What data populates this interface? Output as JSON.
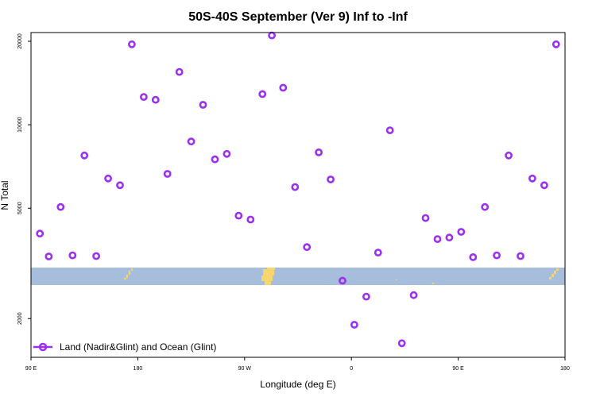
{
  "chart_data": {
    "type": "scatter",
    "title": "50S-40S September (Ver 9)   Inf to -Inf",
    "xlabel": "Longitude (deg E)",
    "ylabel": "N Total",
    "x_tick_labels": [
      "90 E",
      "180",
      "90 W",
      "0",
      "90 E",
      "180"
    ],
    "x_tick_values": [
      90,
      180,
      270,
      360,
      450,
      540
    ],
    "xlim": [
      90,
      540
    ],
    "y_scale": "log",
    "ylim": [
      1450,
      21500
    ],
    "y_tick_labels": [
      "2000",
      "5000",
      "10000",
      "20000"
    ],
    "y_tick_values": [
      2000,
      5000,
      10000,
      20000
    ],
    "map_band": {
      "description": "land/ocean strip",
      "ocean_color": "#a6bddb",
      "land_color": "#f5d76e"
    },
    "series": [
      {
        "name": "Land (Nadir&Glint) and Ocean (Glint)",
        "color": "#9b30f0",
        "x": [
          97.5,
          105,
          115,
          125,
          135,
          145,
          155,
          165,
          175,
          185,
          195,
          205,
          215,
          225,
          235,
          245,
          255,
          265,
          275,
          285,
          293,
          302.5,
          312.5,
          322.5,
          332.5,
          342.5,
          352.5,
          362.5,
          372.5,
          382.5,
          392.5,
          402.5,
          412.5,
          422.5,
          432.5,
          442.5,
          452.5,
          462.5,
          472.5,
          482.5,
          492.5,
          502.5,
          512.5,
          522.5,
          532.5
        ],
        "y": [
          4050,
          3350,
          5050,
          3380,
          7750,
          3360,
          6400,
          6050,
          19500,
          12600,
          12300,
          6650,
          15500,
          8700,
          11800,
          7500,
          7850,
          4700,
          4550,
          12900,
          21000,
          13600,
          5960,
          3620,
          7950,
          6350,
          2740,
          1900,
          2400,
          3460,
          9550,
          1630,
          2430,
          4610,
          3870,
          3920,
          4110,
          3330,
          5050,
          3380,
          7750,
          3360,
          6400,
          6050,
          19500
        ]
      }
    ],
    "legend": {
      "placement": "bottom-left",
      "entries": [
        "Land (Nadir&Glint) and Ocean (Glint)"
      ]
    }
  }
}
